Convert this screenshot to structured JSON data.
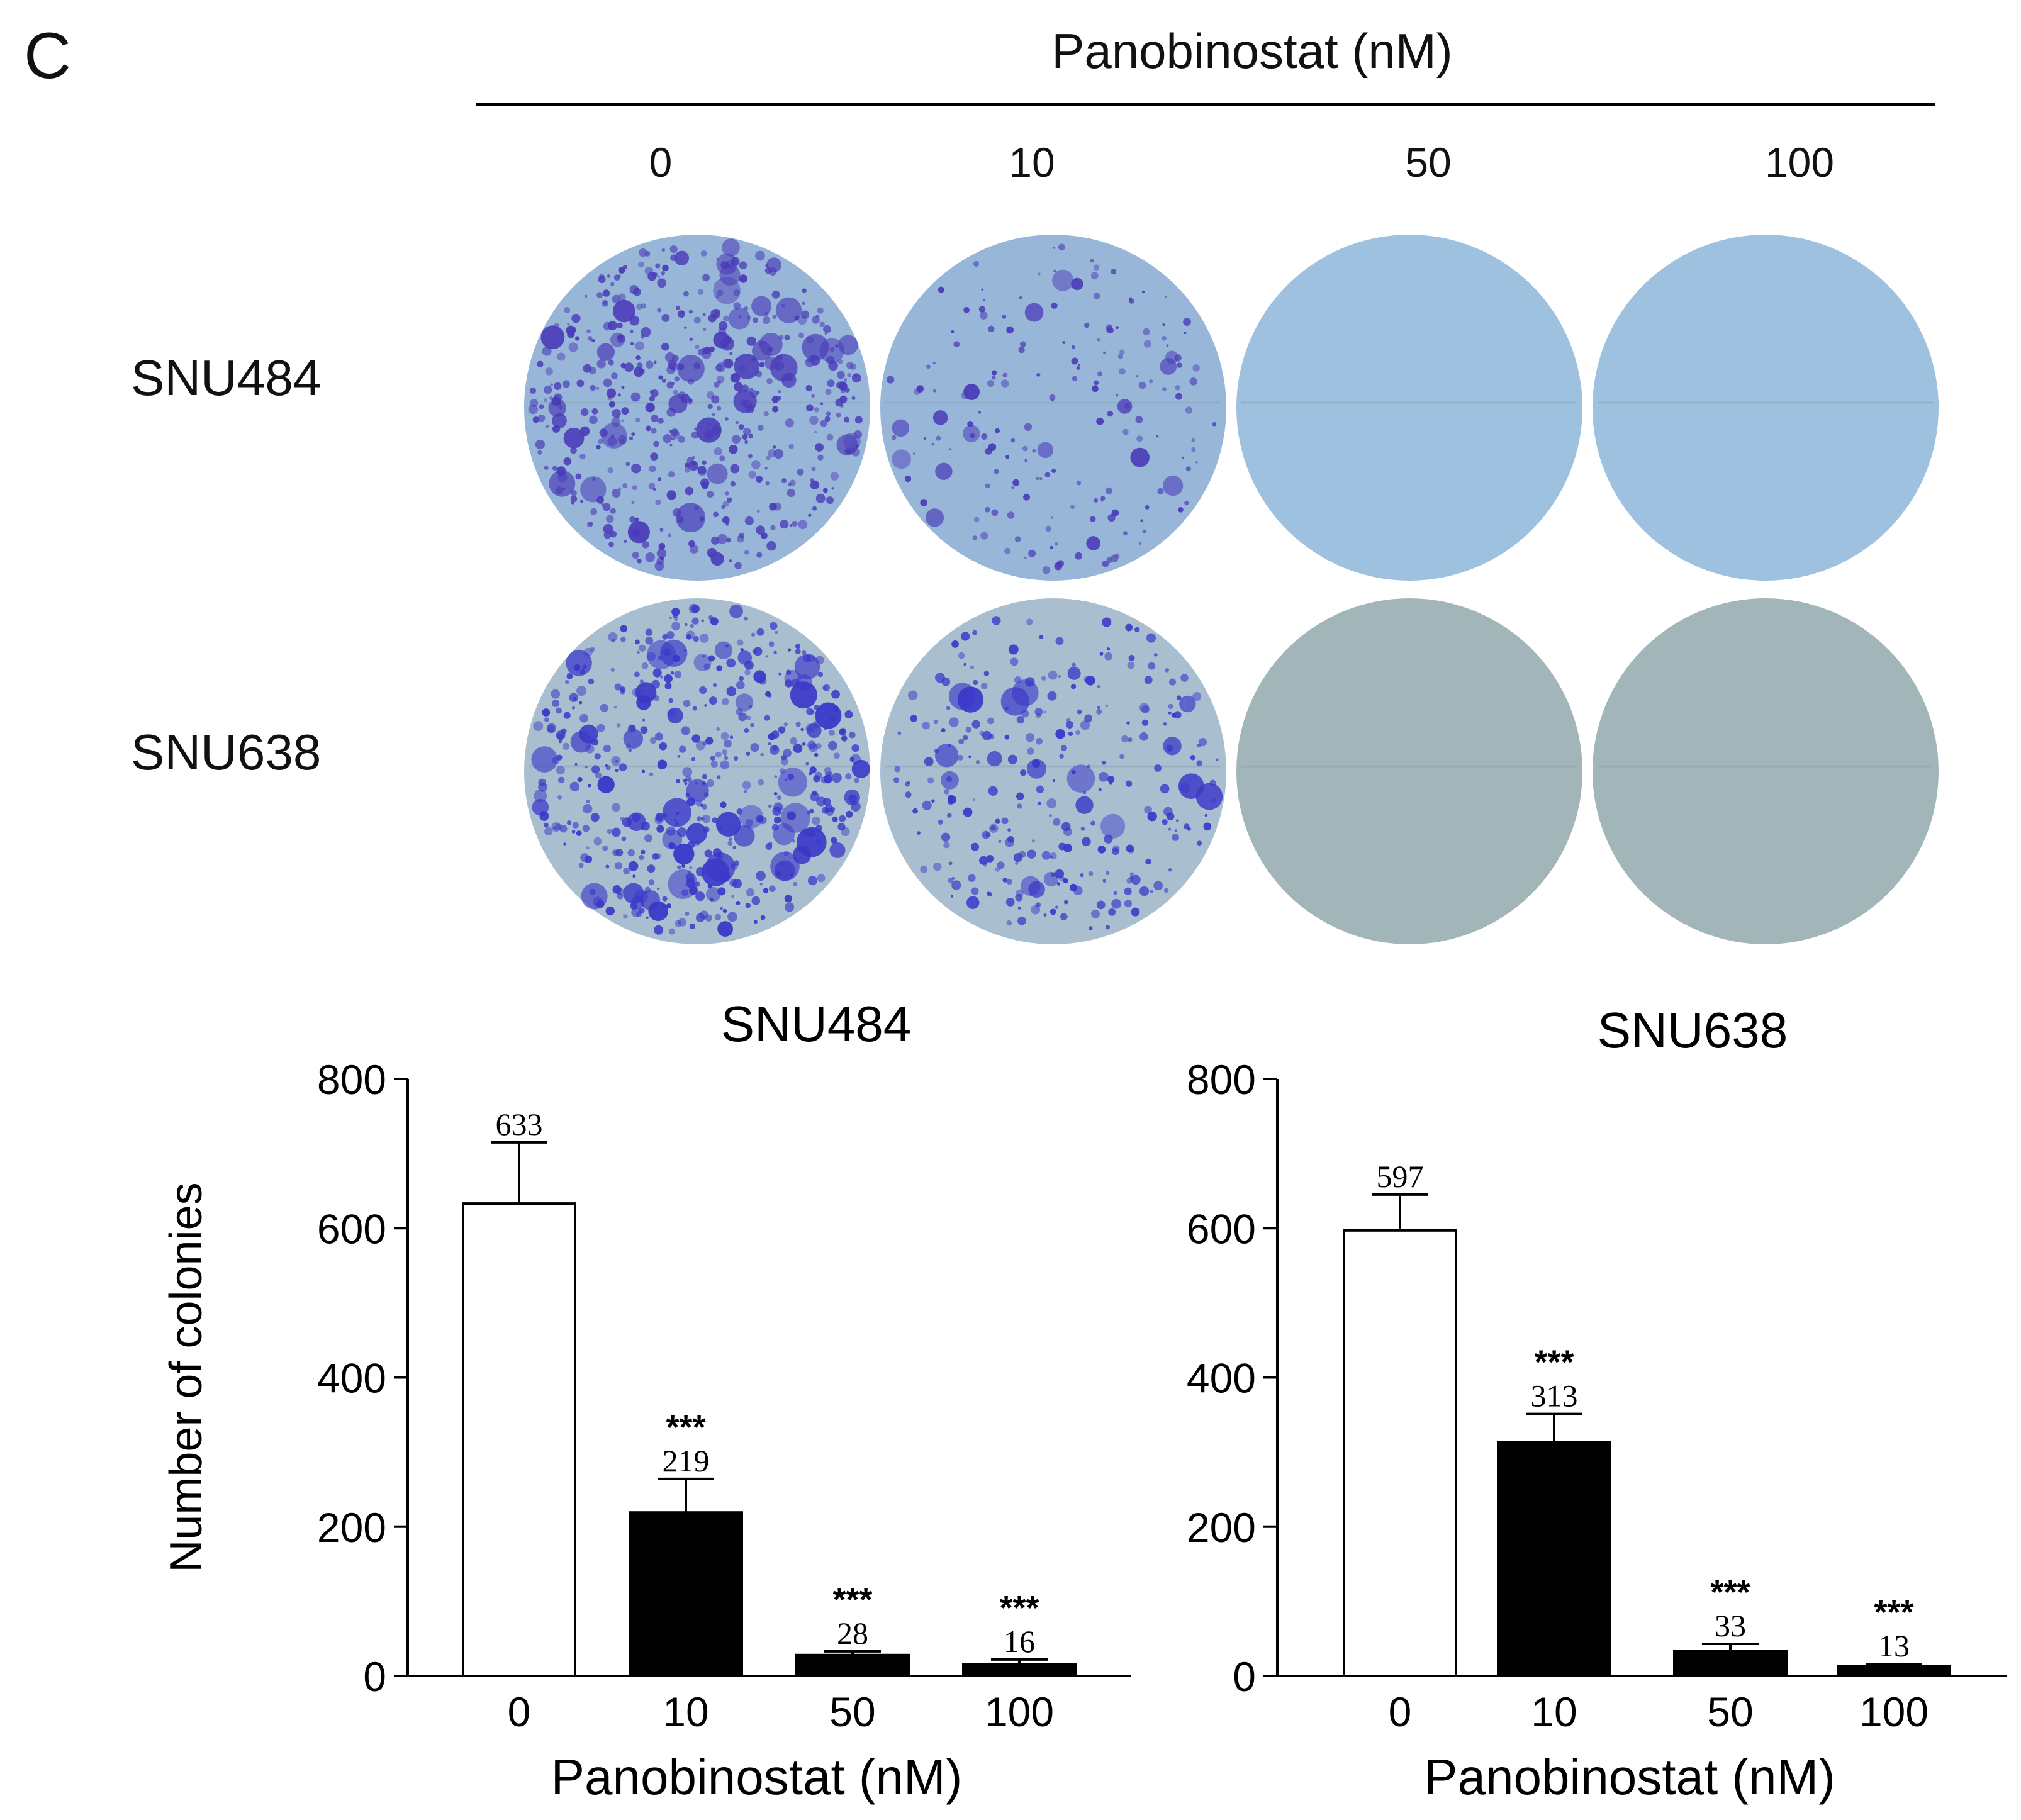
{
  "panel_label": "C",
  "treatment_title": "Panobinostat (nM)",
  "concentrations": [
    "0",
    "10",
    "50",
    "100"
  ],
  "cell_lines": [
    "SNU484",
    "SNU638"
  ],
  "plate_colors": {
    "SNU484": {
      "base": "#97b6d8",
      "stain": "#4a3bb8",
      "cleared": "#9dc1de"
    },
    "SNU638": {
      "base": "#a9bfd0",
      "stain": "#3a37c8",
      "cleared": "#a2b5b8"
    }
  },
  "plate_stain_density": {
    "SNU484": [
      1.0,
      0.35,
      0,
      0
    ],
    "SNU638": [
      1.0,
      0.55,
      0,
      0
    ]
  },
  "chart_data": [
    {
      "type": "bar",
      "title": "SNU484",
      "xlabel": "Panobinostat (nM)",
      "ylabel": "Number of colonies",
      "categories": [
        "0",
        "10",
        "50",
        "100"
      ],
      "values": [
        633,
        219,
        28,
        16
      ],
      "error": [
        82,
        45,
        5,
        6
      ],
      "value_labels": [
        "633",
        "219",
        "28",
        "16"
      ],
      "significance": [
        "",
        "***",
        "***",
        "***"
      ],
      "bar_fills": [
        "#ffffff",
        "#000000",
        "#000000",
        "#000000"
      ],
      "ylim": [
        0,
        800
      ],
      "yticks": [
        0,
        200,
        400,
        600,
        800
      ]
    },
    {
      "type": "bar",
      "title": "SNU638",
      "xlabel": "Panobinostat (nM)",
      "ylabel": "",
      "categories": [
        "0",
        "10",
        "50",
        "100"
      ],
      "values": [
        597,
        313,
        33,
        13
      ],
      "error": [
        48,
        38,
        10,
        3
      ],
      "value_labels": [
        "597",
        "313",
        "33",
        "13"
      ],
      "significance": [
        "",
        "***",
        "***",
        "***"
      ],
      "bar_fills": [
        "#ffffff",
        "#000000",
        "#000000",
        "#000000"
      ],
      "ylim": [
        0,
        800
      ],
      "yticks": [
        0,
        200,
        400,
        600,
        800
      ]
    }
  ]
}
